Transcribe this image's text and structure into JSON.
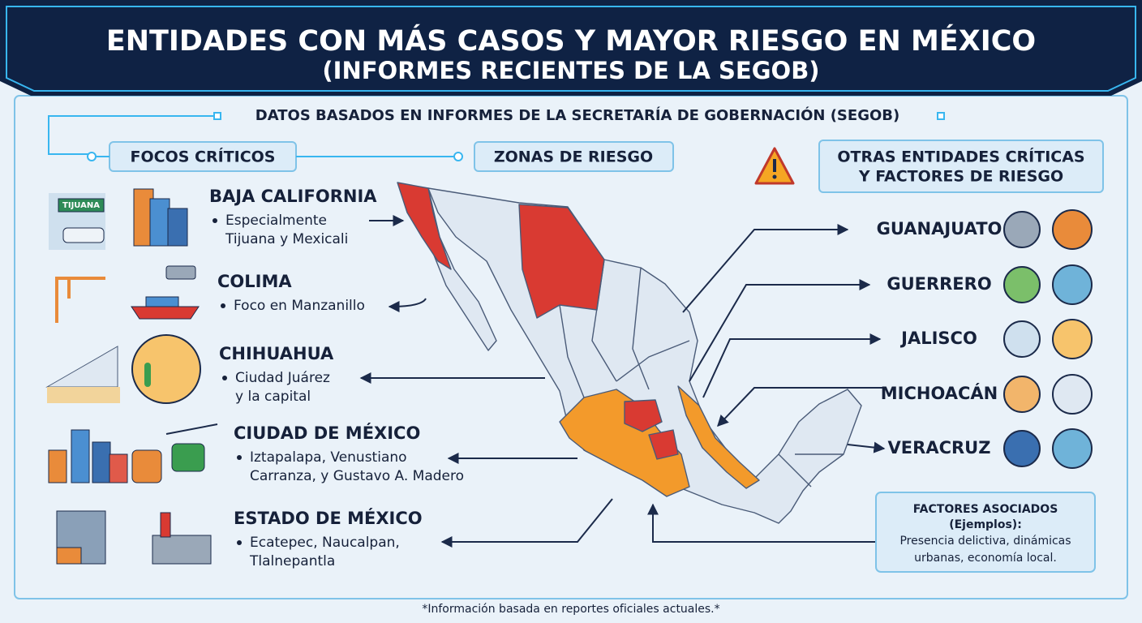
{
  "header": {
    "title": "ENTIDADES CON MÁS CASOS Y MAYOR RIESGO EN MÉXICO",
    "subtitle": "(INFORMES RECIENTES DE LA SEGOB)"
  },
  "source_banner": "DATOS BASADOS EN INFORMES DE LA SECRETARÍA DE GOBERNACIÓN (SEGOB)",
  "sections": {
    "focos": "FOCOS CRÍTICOS",
    "zonas": "ZONAS DE RIESGO",
    "otras": [
      "OTRAS ENTIDADES CRÍTICAS",
      "Y FACTORES DE RIESGO"
    ]
  },
  "focos": [
    {
      "name": "BAJA CALIFORNIA",
      "details": [
        "Especialmente",
        "Tijuana y Mexicali"
      ]
    },
    {
      "name": "COLIMA",
      "details": [
        "Foco en Manzanillo"
      ]
    },
    {
      "name": "CHIHUAHUA",
      "details": [
        "Ciudad Juárez",
        "y la capital"
      ]
    },
    {
      "name": "CIUDAD DE MÉXICO",
      "details": [
        "Iztapalapa, Venustiano",
        "Carranza, y Gustavo A. Madero"
      ]
    },
    {
      "name": "ESTADO DE MÉXICO",
      "details": [
        "Ecatepec, Naucalpan,",
        "Tlalnepantla"
      ]
    }
  ],
  "sign_text": "TIJUANA",
  "otras": [
    "GUANAJUATO",
    "GUERRERO",
    "JALISCO",
    "MICHOACÁN",
    "VERACRUZ"
  ],
  "factores": {
    "title": "FACTORES ASOCIADOS",
    "subtitle": "(Ejemplos):",
    "lines": [
      "Presencia delictiva, dinámicas",
      "urbanas, economía local."
    ]
  },
  "footnote": "*Información basada en reportes oficiales actuales.*"
}
